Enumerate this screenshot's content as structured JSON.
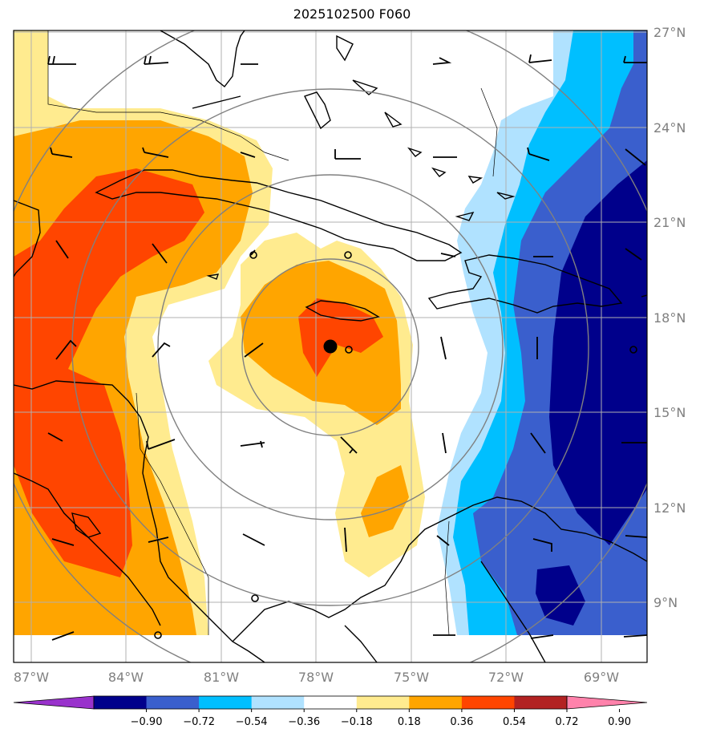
{
  "title": "2025102500 F060",
  "map": {
    "lat_labels": [
      "27°N",
      "24°N",
      "21°N",
      "18°N",
      "15°N",
      "12°N",
      "9°N"
    ],
    "lon_labels": [
      "87°W",
      "84°W",
      "81°W",
      "78°W",
      "75°W",
      "72°W",
      "69°W"
    ],
    "extent": {
      "lon_min": -87.5,
      "lon_max": -67.4,
      "lat_min": 7.8,
      "lat_max": 27.0
    },
    "storm_center": {
      "lat": 17.1,
      "lon": -77.8
    },
    "range_ring_center": {
      "lat": 17.1,
      "lon": -77.8
    },
    "colors": {
      "grid": "#b0b0b0",
      "rings": "#808080",
      "coast": "#000000"
    }
  },
  "colorbar": {
    "levels": [
      "-0.90",
      "-0.72",
      "-0.54",
      "-0.36",
      "-0.18",
      "0.18",
      "0.36",
      "0.54",
      "0.72",
      "0.90"
    ],
    "colors": [
      "#9932cc",
      "#00008b",
      "#3a5fcd",
      "#00bfff",
      "#b0e2ff",
      "#ffffff",
      "#ffeb8f",
      "#ffa500",
      "#ff4500",
      "#b22222",
      "#ff82ab"
    ]
  }
}
